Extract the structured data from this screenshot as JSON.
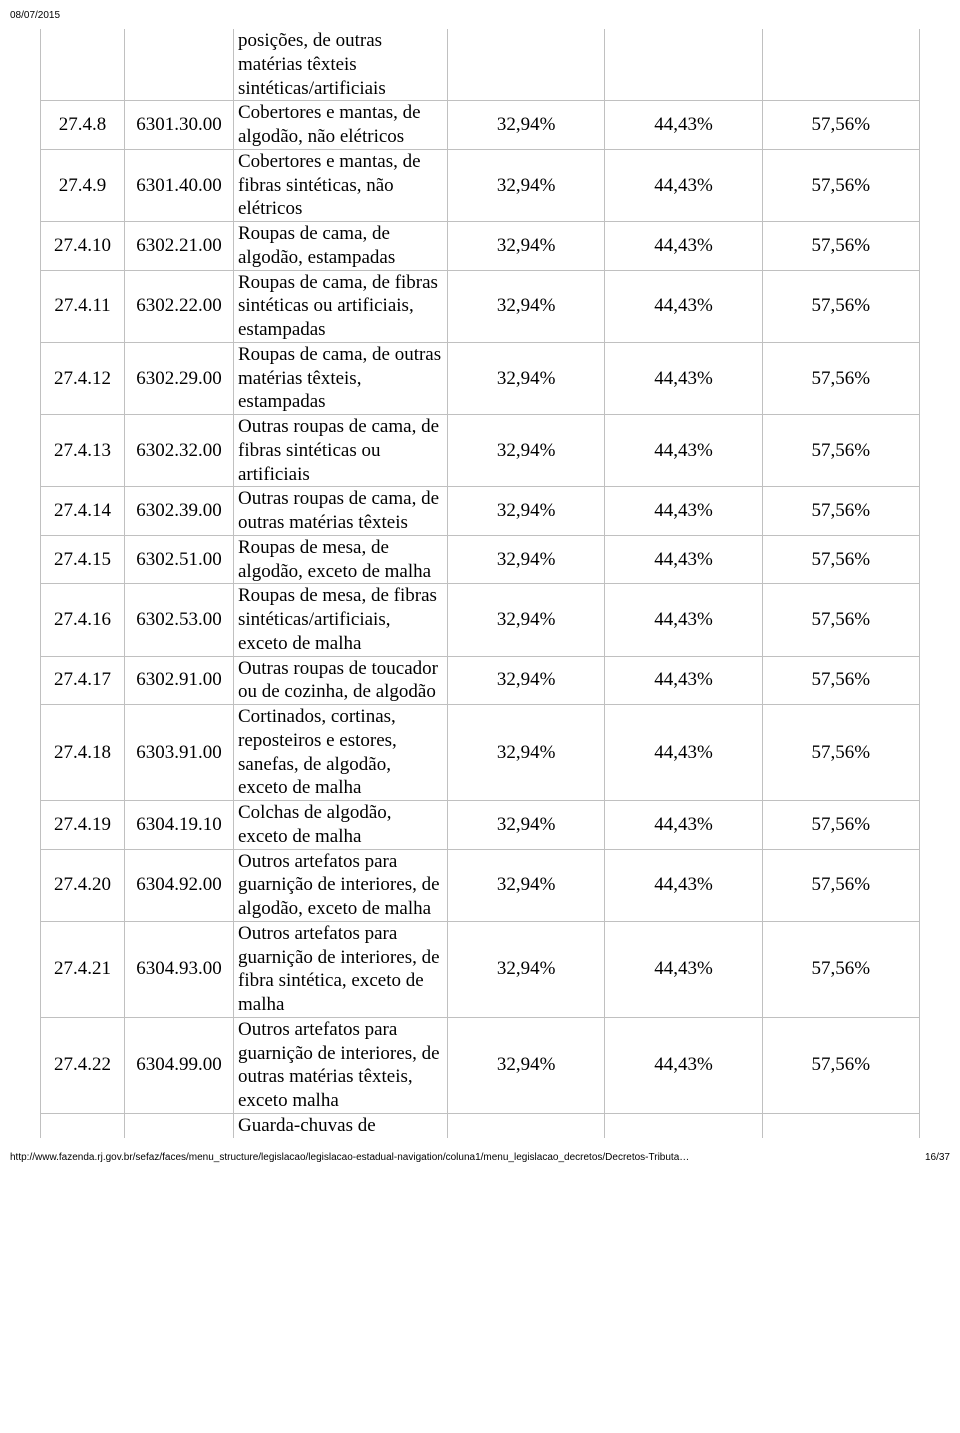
{
  "date": "08/07/2015",
  "fragment_top": {
    "desc": "posições, de outras matérias têxteis sintéticas/artificiais"
  },
  "rows": [
    {
      "n": "27.4.8",
      "c": "6301.30.00",
      "d": "Cobertores e mantas, de algodão, não elétricos",
      "p1": "32,94%",
      "p2": "44,43%",
      "p3": "57,56%"
    },
    {
      "n": "27.4.9",
      "c": "6301.40.00",
      "d": "Cobertores e mantas, de fibras sintéticas, não elétricos",
      "p1": "32,94%",
      "p2": "44,43%",
      "p3": "57,56%"
    },
    {
      "n": "27.4.10",
      "c": "6302.21.00",
      "d": "Roupas de cama, de algodão, estampadas",
      "p1": "32,94%",
      "p2": "44,43%",
      "p3": "57,56%"
    },
    {
      "n": "27.4.11",
      "c": "6302.22.00",
      "d": "Roupas de cama, de fibras sintéticas ou artificiais, estampadas",
      "p1": "32,94%",
      "p2": "44,43%",
      "p3": "57,56%"
    },
    {
      "n": "27.4.12",
      "c": "6302.29.00",
      "d": "Roupas de cama, de outras matérias têxteis, estampadas",
      "p1": "32,94%",
      "p2": "44,43%",
      "p3": "57,56%"
    },
    {
      "n": "27.4.13",
      "c": "6302.32.00",
      "d": "Outras roupas de cama, de fibras sintéticas ou artificiais",
      "p1": "32,94%",
      "p2": "44,43%",
      "p3": "57,56%"
    },
    {
      "n": "27.4.14",
      "c": "6302.39.00",
      "d": "Outras roupas de cama, de outras matérias têxteis",
      "p1": "32,94%",
      "p2": "44,43%",
      "p3": "57,56%"
    },
    {
      "n": "27.4.15",
      "c": "6302.51.00",
      "d": "Roupas de mesa, de algodão, exceto de malha",
      "p1": "32,94%",
      "p2": "44,43%",
      "p3": "57,56%"
    },
    {
      "n": "27.4.16",
      "c": "6302.53.00",
      "d": "Roupas de mesa, de fibras sintéticas/artificiais, exceto de malha",
      "p1": "32,94%",
      "p2": "44,43%",
      "p3": "57,56%"
    },
    {
      "n": "27.4.17",
      "c": "6302.91.00",
      "d": "Outras roupas de toucador ou de cozinha, de algodão",
      "p1": "32,94%",
      "p2": "44,43%",
      "p3": "57,56%"
    },
    {
      "n": "27.4.18",
      "c": "6303.91.00",
      "d": "Cortinados, cortinas, reposteiros e estores, sanefas, de algodão, exceto de malha",
      "p1": "32,94%",
      "p2": "44,43%",
      "p3": "57,56%"
    },
    {
      "n": "27.4.19",
      "c": "6304.19.10",
      "d": "Colchas de algodão, exceto de malha",
      "p1": "32,94%",
      "p2": "44,43%",
      "p3": "57,56%"
    },
    {
      "n": "27.4.20",
      "c": "6304.92.00",
      "d": "Outros artefatos para guarnição de interiores, de algodão, exceto de malha",
      "p1": "32,94%",
      "p2": "44,43%",
      "p3": "57,56%"
    },
    {
      "n": "27.4.21",
      "c": "6304.93.00",
      "d": "Outros artefatos para guarnição de interiores, de fibra sintética, exceto de malha",
      "p1": "32,94%",
      "p2": "44,43%",
      "p3": "57,56%"
    },
    {
      "n": "27.4.22",
      "c": "6304.99.00",
      "d": "Outros artefatos para guarnição de interiores, de outras matérias têxteis, exceto malha",
      "p1": "32,94%",
      "p2": "44,43%",
      "p3": "57,56%"
    }
  ],
  "fragment_bottom": {
    "desc": "Guarda-chuvas de"
  },
  "footer": {
    "url": "http://www.fazenda.rj.gov.br/sefaz/faces/menu_structure/legislacao/legislacao-estadual-navigation/coluna1/menu_legislacao_decretos/Decretos-Tributa…",
    "page": "16/37"
  }
}
